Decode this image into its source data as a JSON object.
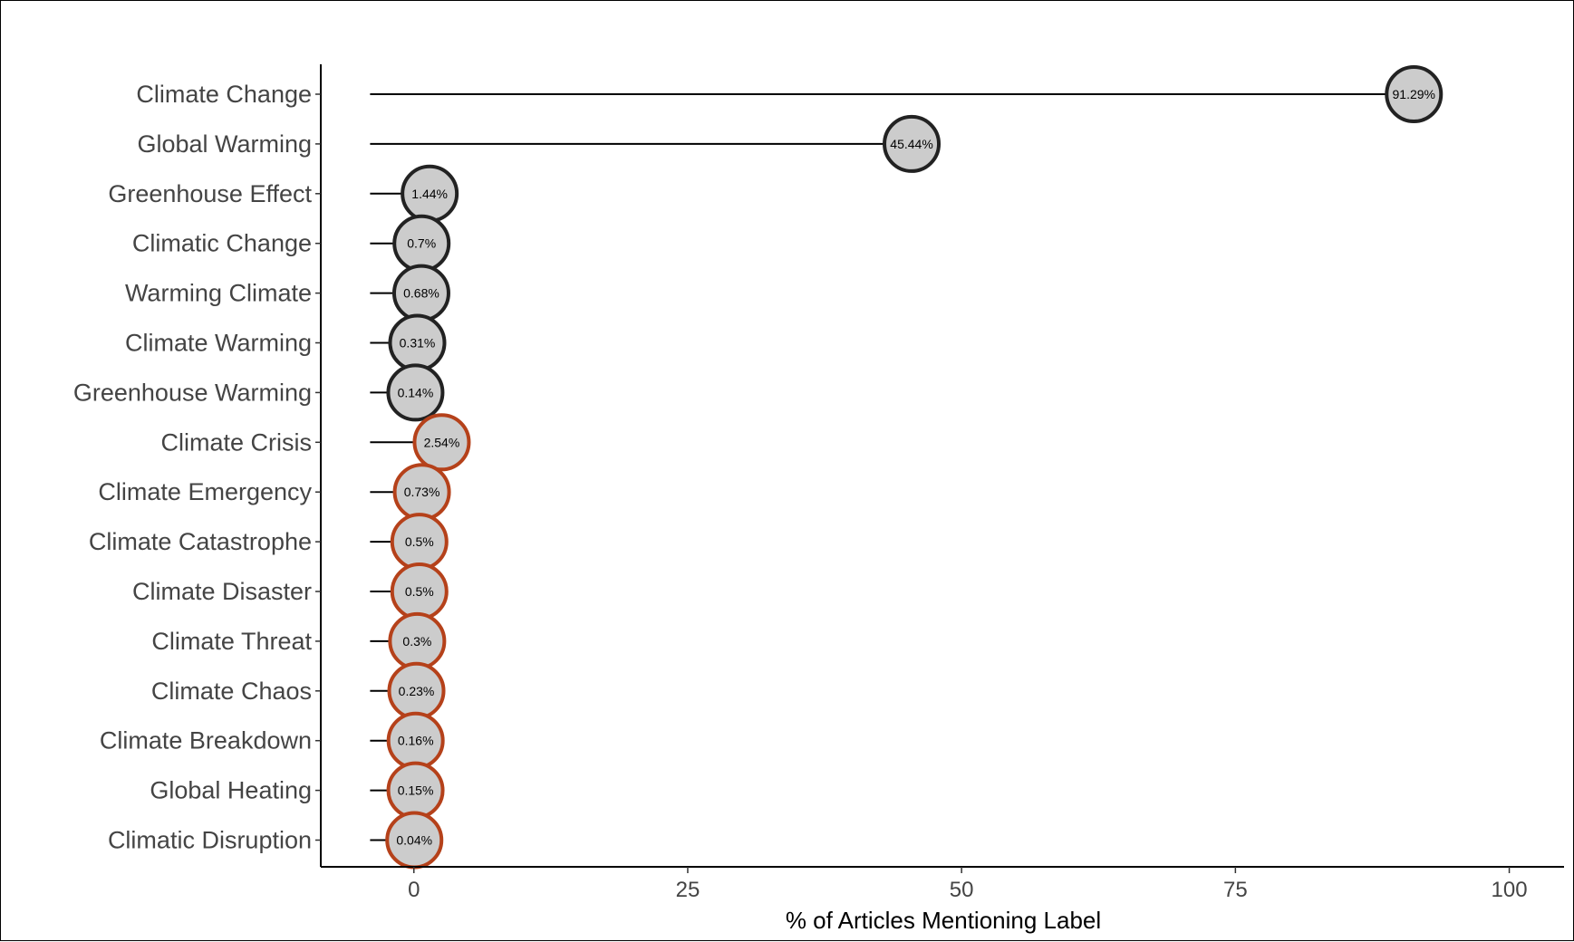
{
  "chart_data": {
    "type": "lollipop",
    "title": "",
    "xlabel": "% of Articles Mentioning Label",
    "ylabel": "",
    "xlim": [
      -8.5,
      105
    ],
    "xticks": [
      0,
      25,
      50,
      75,
      100
    ],
    "xtick_labels": [
      "0",
      "25",
      "50",
      "75",
      "100"
    ],
    "stem_start": -4,
    "grid": false,
    "legend": "none",
    "group_colors": {
      "group1": "#222222",
      "group2": "#b5411a"
    },
    "marker_fill": "#cccccc",
    "categories": [
      "Climate Change",
      "Global Warming",
      "Greenhouse Effect",
      "Climatic Change",
      "Warming Climate",
      "Climate Warming",
      "Greenhouse Warming",
      "Climate Crisis",
      "Climate Emergency",
      "Climate Catastrophe",
      "Climate Disaster",
      "Climate Threat",
      "Climate Chaos",
      "Climate Breakdown",
      "Global Heating",
      "Climatic Disruption"
    ],
    "values": [
      91.29,
      45.44,
      1.44,
      0.7,
      0.68,
      0.31,
      0.14,
      2.54,
      0.73,
      0.5,
      0.5,
      0.3,
      0.23,
      0.16,
      0.15,
      0.04
    ],
    "data_labels": [
      "91.29%",
      "45.44%",
      "1.44%",
      "0.7%",
      "0.68%",
      "0.31%",
      "0.14%",
      "2.54%",
      "0.73%",
      "0.5%",
      "0.5%",
      "0.3%",
      "0.23%",
      "0.16%",
      "0.15%",
      "0.04%"
    ],
    "groups": [
      "group1",
      "group1",
      "group1",
      "group1",
      "group1",
      "group1",
      "group1",
      "group2",
      "group2",
      "group2",
      "group2",
      "group2",
      "group2",
      "group2",
      "group2",
      "group2"
    ]
  }
}
